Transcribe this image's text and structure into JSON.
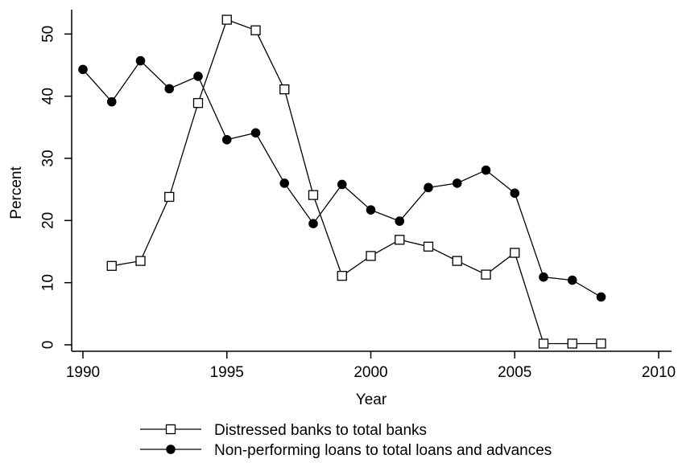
{
  "chart_data": {
    "type": "line",
    "xlabel": "Year",
    "ylabel": "Percent",
    "xlim": [
      1990,
      2010
    ],
    "ylim": [
      0,
      52.5
    ],
    "x_ticks": [
      1990,
      1995,
      2000,
      2005,
      2010
    ],
    "y_ticks": [
      0,
      10,
      20,
      30,
      40,
      50
    ],
    "grid": false,
    "legend_position": "bottom",
    "series": [
      {
        "name": "Distressed banks to total banks",
        "marker": "hollow-square",
        "color": "#000000",
        "points": [
          {
            "x": 1991,
            "y": 12.7
          },
          {
            "x": 1992,
            "y": 13.5
          },
          {
            "x": 1993,
            "y": 23.8
          },
          {
            "x": 1994,
            "y": 38.9
          },
          {
            "x": 1995,
            "y": 52.3
          },
          {
            "x": 1996,
            "y": 50.6
          },
          {
            "x": 1997,
            "y": 41.1
          },
          {
            "x": 1998,
            "y": 24.1
          },
          {
            "x": 1999,
            "y": 11.1
          },
          {
            "x": 2000,
            "y": 14.3
          },
          {
            "x": 2001,
            "y": 16.9
          },
          {
            "x": 2002,
            "y": 15.8
          },
          {
            "x": 2003,
            "y": 13.5
          },
          {
            "x": 2004,
            "y": 11.3
          },
          {
            "x": 2005,
            "y": 14.8
          },
          {
            "x": 2006,
            "y": 0.2
          },
          {
            "x": 2007,
            "y": 0.2
          },
          {
            "x": 2008,
            "y": 0.2
          }
        ]
      },
      {
        "name": "Non-performing loans to total loans and advances",
        "marker": "filled-circle",
        "color": "#000000",
        "points": [
          {
            "x": 1990,
            "y": 44.3
          },
          {
            "x": 1991,
            "y": 39.1
          },
          {
            "x": 1992,
            "y": 45.7
          },
          {
            "x": 1993,
            "y": 41.2
          },
          {
            "x": 1994,
            "y": 43.2
          },
          {
            "x": 1995,
            "y": 33.0
          },
          {
            "x": 1996,
            "y": 34.1
          },
          {
            "x": 1997,
            "y": 26.0
          },
          {
            "x": 1998,
            "y": 19.5
          },
          {
            "x": 1999,
            "y": 25.8
          },
          {
            "x": 2000,
            "y": 21.7
          },
          {
            "x": 2001,
            "y": 19.9
          },
          {
            "x": 2002,
            "y": 25.3
          },
          {
            "x": 2003,
            "y": 26.0
          },
          {
            "x": 2004,
            "y": 28.1
          },
          {
            "x": 2005,
            "y": 24.4
          },
          {
            "x": 2006,
            "y": 10.9
          },
          {
            "x": 2007,
            "y": 10.4
          },
          {
            "x": 2008,
            "y": 7.7
          }
        ]
      }
    ]
  }
}
